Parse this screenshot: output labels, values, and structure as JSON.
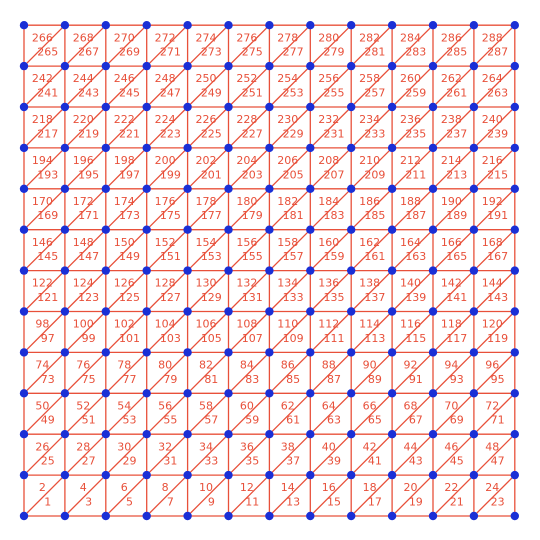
{
  "chart_data": {
    "type": "triangular-mesh",
    "grid": {
      "columns": 12,
      "rows": 12
    },
    "element_count": 288,
    "element_numbering": "triangle labels 1..288, row by row from bottom-left; within each cell the lower-right triangle has the odd number and the upper-left triangle the even number",
    "labels_shown": "element numbers only (no node numbers)",
    "colors": {
      "edges": "#e8503a",
      "element_labels": "#e8503a",
      "nodes": "#1a2fd6",
      "background": "#ffffff"
    }
  }
}
